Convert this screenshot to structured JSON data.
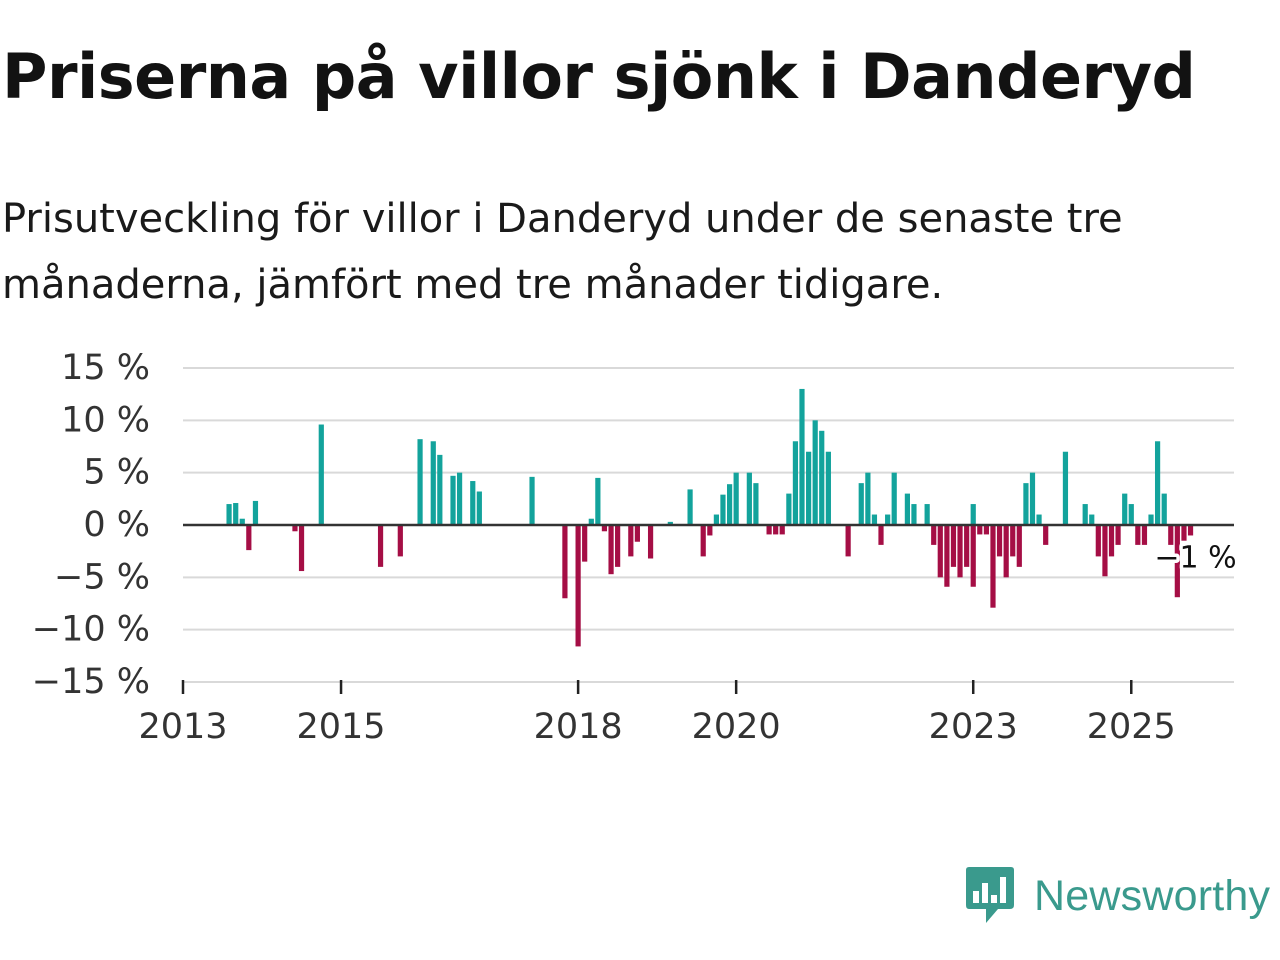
{
  "title": "Priserna på villor sjönk i Danderyd",
  "subtitle": "Prisutveckling för villor i Danderyd under de senaste tre månaderna, jämfört med tre månader tidigare.",
  "brand": {
    "name": "Newsworthy",
    "icon": "newsworthy-logo-icon",
    "color": "#3a9a8d"
  },
  "colors": {
    "positive": "#13a39c",
    "negative": "#a50e45",
    "grid": "#d9d9d9",
    "zero": "#333333"
  },
  "chart_data": {
    "type": "bar",
    "title": "Priserna på villor sjönk i Danderyd",
    "xlabel": "",
    "ylabel": "",
    "ylim": [
      -15,
      15
    ],
    "xlim": [
      2013.0,
      2026.3
    ],
    "y_ticks": [
      15,
      10,
      5,
      0,
      -5,
      -10,
      -15
    ],
    "y_tick_labels": [
      "15 %",
      "10 %",
      "5 %",
      "0 %",
      "−5 %",
      "−10 %",
      "−15 %"
    ],
    "x_ticks": [
      2013,
      2015,
      2018,
      2020,
      2023,
      2025
    ],
    "x_tick_labels": [
      "2013",
      "2015",
      "2018",
      "2020",
      "2023",
      "2025"
    ],
    "units": "%",
    "annotation": {
      "text": "−1 %",
      "x": 2025.75,
      "y": -1
    },
    "points": [
      [
        2013.583,
        2.0
      ],
      [
        2013.667,
        2.1
      ],
      [
        2013.75,
        0.6
      ],
      [
        2013.833,
        -2.4
      ],
      [
        2013.917,
        2.3
      ],
      [
        2014.417,
        -0.6
      ],
      [
        2014.5,
        -4.4
      ],
      [
        2014.75,
        9.6
      ],
      [
        2015.5,
        -4.0
      ],
      [
        2015.75,
        -3.0
      ],
      [
        2016.0,
        8.2
      ],
      [
        2016.167,
        8.0
      ],
      [
        2016.25,
        6.7
      ],
      [
        2016.417,
        4.7
      ],
      [
        2016.5,
        5.0
      ],
      [
        2016.667,
        4.2
      ],
      [
        2016.75,
        3.2
      ],
      [
        2017.417,
        4.6
      ],
      [
        2017.833,
        -7.0
      ],
      [
        2018.0,
        -11.6
      ],
      [
        2018.083,
        -3.5
      ],
      [
        2018.167,
        0.6
      ],
      [
        2018.25,
        4.5
      ],
      [
        2018.333,
        -0.6
      ],
      [
        2018.417,
        -4.7
      ],
      [
        2018.5,
        -4.0
      ],
      [
        2018.667,
        -3.0
      ],
      [
        2018.75,
        -1.6
      ],
      [
        2018.917,
        -3.2
      ],
      [
        2019.167,
        0.3
      ],
      [
        2019.417,
        3.4
      ],
      [
        2019.583,
        -3.0
      ],
      [
        2019.667,
        -1.0
      ],
      [
        2019.75,
        1.0
      ],
      [
        2019.833,
        2.9
      ],
      [
        2019.917,
        3.9
      ],
      [
        2020.0,
        5.0
      ],
      [
        2020.167,
        5.0
      ],
      [
        2020.25,
        4.0
      ],
      [
        2020.417,
        -0.9
      ],
      [
        2020.5,
        -0.9
      ],
      [
        2020.583,
        -0.9
      ],
      [
        2020.667,
        3.0
      ],
      [
        2020.75,
        8.0
      ],
      [
        2020.833,
        13.0
      ],
      [
        2020.917,
        7.0
      ],
      [
        2021.0,
        10.0
      ],
      [
        2021.083,
        9.0
      ],
      [
        2021.167,
        7.0
      ],
      [
        2021.417,
        -3.0
      ],
      [
        2021.583,
        4.0
      ],
      [
        2021.667,
        5.0
      ],
      [
        2021.75,
        1.0
      ],
      [
        2021.833,
        -1.9
      ],
      [
        2021.917,
        1.0
      ],
      [
        2022.0,
        5.0
      ],
      [
        2022.167,
        3.0
      ],
      [
        2022.25,
        2.0
      ],
      [
        2022.417,
        2.0
      ],
      [
        2022.5,
        -1.9
      ],
      [
        2022.583,
        -5.0
      ],
      [
        2022.667,
        -5.9
      ],
      [
        2022.75,
        -4.0
      ],
      [
        2022.833,
        -5.0
      ],
      [
        2022.917,
        -4.0
      ],
      [
        2023.0,
        -5.9
      ],
      [
        2023.0,
        2.0
      ],
      [
        2023.083,
        -0.9
      ],
      [
        2023.167,
        -0.9
      ],
      [
        2023.25,
        -7.9
      ],
      [
        2023.333,
        -3.0
      ],
      [
        2023.417,
        -5.0
      ],
      [
        2023.5,
        -3.0
      ],
      [
        2023.583,
        -4.0
      ],
      [
        2023.667,
        4.0
      ],
      [
        2023.75,
        5.0
      ],
      [
        2023.833,
        1.0
      ],
      [
        2023.917,
        -1.9
      ],
      [
        2024.167,
        7.0
      ],
      [
        2024.417,
        2.0
      ],
      [
        2024.5,
        1.0
      ],
      [
        2024.583,
        -3.0
      ],
      [
        2024.667,
        -4.9
      ],
      [
        2024.75,
        -3.0
      ],
      [
        2024.833,
        -1.9
      ],
      [
        2024.917,
        3.0
      ],
      [
        2025.0,
        2.0
      ],
      [
        2025.083,
        -1.9
      ],
      [
        2025.167,
        -1.9
      ],
      [
        2025.25,
        1.0
      ],
      [
        2025.333,
        8.0
      ],
      [
        2025.417,
        3.0
      ],
      [
        2025.5,
        -1.9
      ],
      [
        2025.583,
        -6.9
      ],
      [
        2025.667,
        -1.5
      ],
      [
        2025.75,
        -1.0
      ]
    ]
  }
}
